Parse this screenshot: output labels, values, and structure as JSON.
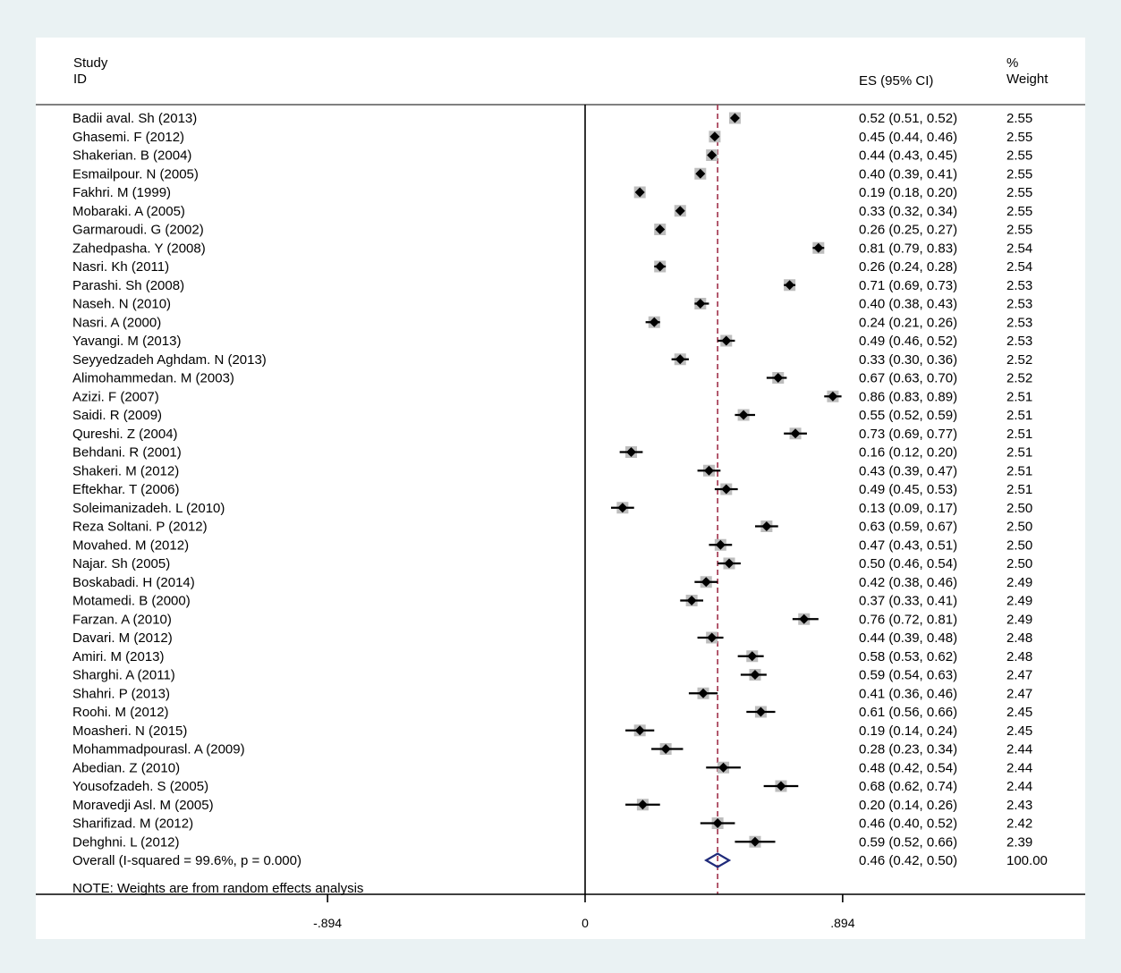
{
  "chart_data": {
    "type": "forest",
    "headers": {
      "study_line1": "Study",
      "study_line2": "ID",
      "es": "ES (95% CI)",
      "weight_line1": "%",
      "weight_line2": "Weight"
    },
    "x_ticks": [
      -0.894,
      0,
      0.894
    ],
    "x_tick_labels": [
      "-.894",
      "0",
      ".894"
    ],
    "xlim": [
      -0.894,
      1.72
    ],
    "null_line": 0,
    "overall_line": 0.46,
    "colors": {
      "marker": "#000000",
      "weight_box": "#bdbdbd",
      "overall_line": "#a0304a",
      "overall_diamond": "#1f2a7a",
      "background": "#eaf2f3"
    },
    "studies": [
      {
        "study": "Badii aval. Sh (2013)",
        "es": 0.52,
        "lo": 0.51,
        "hi": 0.52,
        "ci_text": "0.52 (0.51, 0.52)",
        "weight": "2.55"
      },
      {
        "study": "Ghasemi. F (2012)",
        "es": 0.45,
        "lo": 0.44,
        "hi": 0.46,
        "ci_text": "0.45 (0.44, 0.46)",
        "weight": "2.55"
      },
      {
        "study": "Shakerian. B (2004)",
        "es": 0.44,
        "lo": 0.43,
        "hi": 0.45,
        "ci_text": "0.44 (0.43, 0.45)",
        "weight": "2.55"
      },
      {
        "study": "Esmailpour. N (2005)",
        "es": 0.4,
        "lo": 0.39,
        "hi": 0.41,
        "ci_text": "0.40 (0.39, 0.41)",
        "weight": "2.55"
      },
      {
        "study": "Fakhri. M (1999)",
        "es": 0.19,
        "lo": 0.18,
        "hi": 0.2,
        "ci_text": "0.19 (0.18, 0.20)",
        "weight": "2.55"
      },
      {
        "study": "Mobaraki. A (2005)",
        "es": 0.33,
        "lo": 0.32,
        "hi": 0.34,
        "ci_text": "0.33 (0.32, 0.34)",
        "weight": "2.55"
      },
      {
        "study": "Garmaroudi. G (2002)",
        "es": 0.26,
        "lo": 0.25,
        "hi": 0.27,
        "ci_text": "0.26 (0.25, 0.27)",
        "weight": "2.55"
      },
      {
        "study": "Zahedpasha. Y (2008)",
        "es": 0.81,
        "lo": 0.79,
        "hi": 0.83,
        "ci_text": "0.81 (0.79, 0.83)",
        "weight": "2.54"
      },
      {
        "study": "Nasri. Kh (2011)",
        "es": 0.26,
        "lo": 0.24,
        "hi": 0.28,
        "ci_text": "0.26 (0.24, 0.28)",
        "weight": "2.54"
      },
      {
        "study": "Parashi. Sh (2008)",
        "es": 0.71,
        "lo": 0.69,
        "hi": 0.73,
        "ci_text": "0.71 (0.69, 0.73)",
        "weight": "2.53"
      },
      {
        "study": "Naseh. N (2010)",
        "es": 0.4,
        "lo": 0.38,
        "hi": 0.43,
        "ci_text": "0.40 (0.38, 0.43)",
        "weight": "2.53"
      },
      {
        "study": "Nasri. A (2000)",
        "es": 0.24,
        "lo": 0.21,
        "hi": 0.26,
        "ci_text": "0.24 (0.21, 0.26)",
        "weight": "2.53"
      },
      {
        "study": "Yavangi. M (2013)",
        "es": 0.49,
        "lo": 0.46,
        "hi": 0.52,
        "ci_text": "0.49 (0.46, 0.52)",
        "weight": "2.53"
      },
      {
        "study": "Seyyedzadeh Aghdam. N (2013)",
        "es": 0.33,
        "lo": 0.3,
        "hi": 0.36,
        "ci_text": "0.33 (0.30, 0.36)",
        "weight": "2.52"
      },
      {
        "study": "Alimohammedan. M (2003)",
        "es": 0.67,
        "lo": 0.63,
        "hi": 0.7,
        "ci_text": "0.67 (0.63, 0.70)",
        "weight": "2.52"
      },
      {
        "study": "Azizi. F (2007)",
        "es": 0.86,
        "lo": 0.83,
        "hi": 0.89,
        "ci_text": "0.86 (0.83, 0.89)",
        "weight": "2.51"
      },
      {
        "study": "Saidi. R (2009)",
        "es": 0.55,
        "lo": 0.52,
        "hi": 0.59,
        "ci_text": "0.55 (0.52, 0.59)",
        "weight": "2.51"
      },
      {
        "study": "Qureshi. Z (2004)",
        "es": 0.73,
        "lo": 0.69,
        "hi": 0.77,
        "ci_text": "0.73 (0.69, 0.77)",
        "weight": "2.51"
      },
      {
        "study": "Behdani. R (2001)",
        "es": 0.16,
        "lo": 0.12,
        "hi": 0.2,
        "ci_text": "0.16 (0.12, 0.20)",
        "weight": "2.51"
      },
      {
        "study": "Shakeri. M (2012)",
        "es": 0.43,
        "lo": 0.39,
        "hi": 0.47,
        "ci_text": "0.43 (0.39, 0.47)",
        "weight": "2.51"
      },
      {
        "study": "Eftekhar. T (2006)",
        "es": 0.49,
        "lo": 0.45,
        "hi": 0.53,
        "ci_text": "0.49 (0.45, 0.53)",
        "weight": "2.51"
      },
      {
        "study": "Soleimanizadeh. L (2010)",
        "es": 0.13,
        "lo": 0.09,
        "hi": 0.17,
        "ci_text": "0.13 (0.09, 0.17)",
        "weight": "2.50"
      },
      {
        "study": "Reza Soltani. P (2012)",
        "es": 0.63,
        "lo": 0.59,
        "hi": 0.67,
        "ci_text": "0.63 (0.59, 0.67)",
        "weight": "2.50"
      },
      {
        "study": "Movahed. M (2012)",
        "es": 0.47,
        "lo": 0.43,
        "hi": 0.51,
        "ci_text": "0.47 (0.43, 0.51)",
        "weight": "2.50"
      },
      {
        "study": "Najar. Sh (2005)",
        "es": 0.5,
        "lo": 0.46,
        "hi": 0.54,
        "ci_text": "0.50 (0.46, 0.54)",
        "weight": "2.50"
      },
      {
        "study": "Boskabadi. H (2014)",
        "es": 0.42,
        "lo": 0.38,
        "hi": 0.46,
        "ci_text": "0.42 (0.38, 0.46)",
        "weight": "2.49"
      },
      {
        "study": "Motamedi. B (2000)",
        "es": 0.37,
        "lo": 0.33,
        "hi": 0.41,
        "ci_text": "0.37 (0.33, 0.41)",
        "weight": "2.49"
      },
      {
        "study": "Farzan. A (2010)",
        "es": 0.76,
        "lo": 0.72,
        "hi": 0.81,
        "ci_text": "0.76 (0.72, 0.81)",
        "weight": "2.49"
      },
      {
        "study": "Davari. M (2012)",
        "es": 0.44,
        "lo": 0.39,
        "hi": 0.48,
        "ci_text": "0.44 (0.39, 0.48)",
        "weight": "2.48"
      },
      {
        "study": "Amiri. M (2013)",
        "es": 0.58,
        "lo": 0.53,
        "hi": 0.62,
        "ci_text": "0.58 (0.53, 0.62)",
        "weight": "2.48"
      },
      {
        "study": "Sharghi. A (2011)",
        "es": 0.59,
        "lo": 0.54,
        "hi": 0.63,
        "ci_text": "0.59 (0.54, 0.63)",
        "weight": "2.47"
      },
      {
        "study": "Shahri. P (2013)",
        "es": 0.41,
        "lo": 0.36,
        "hi": 0.46,
        "ci_text": "0.41 (0.36, 0.46)",
        "weight": "2.47"
      },
      {
        "study": "Roohi. M (2012)",
        "es": 0.61,
        "lo": 0.56,
        "hi": 0.66,
        "ci_text": "0.61 (0.56, 0.66)",
        "weight": "2.45"
      },
      {
        "study": "Moasheri. N (2015)",
        "es": 0.19,
        "lo": 0.14,
        "hi": 0.24,
        "ci_text": "0.19 (0.14, 0.24)",
        "weight": "2.45"
      },
      {
        "study": "Mohammadpourasl. A (2009)",
        "es": 0.28,
        "lo": 0.23,
        "hi": 0.34,
        "ci_text": "0.28 (0.23, 0.34)",
        "weight": "2.44"
      },
      {
        "study": "Abedian. Z (2010)",
        "es": 0.48,
        "lo": 0.42,
        "hi": 0.54,
        "ci_text": "0.48 (0.42, 0.54)",
        "weight": "2.44"
      },
      {
        "study": "Yousofzadeh. S (2005)",
        "es": 0.68,
        "lo": 0.62,
        "hi": 0.74,
        "ci_text": "0.68 (0.62, 0.74)",
        "weight": "2.44"
      },
      {
        "study": "Moravedji Asl. M (2005)",
        "es": 0.2,
        "lo": 0.14,
        "hi": 0.26,
        "ci_text": "0.20 (0.14, 0.26)",
        "weight": "2.43"
      },
      {
        "study": "Sharifizad. M (2012)",
        "es": 0.46,
        "lo": 0.4,
        "hi": 0.52,
        "ci_text": "0.46 (0.40, 0.52)",
        "weight": "2.42"
      },
      {
        "study": "Dehghni. L (2012)",
        "es": 0.59,
        "lo": 0.52,
        "hi": 0.66,
        "ci_text": "0.59 (0.52, 0.66)",
        "weight": "2.39"
      }
    ],
    "overall": {
      "label": "Overall  (I-squared = 99.6%, p = 0.000)",
      "es": 0.46,
      "lo": 0.42,
      "hi": 0.5,
      "ci_text": "0.46 (0.42, 0.50)",
      "weight": "100.00"
    },
    "note": "NOTE: Weights are from random effects analysis"
  }
}
